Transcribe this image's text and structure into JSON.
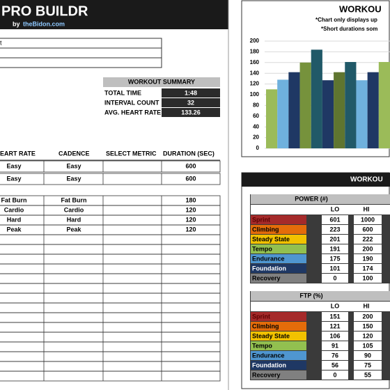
{
  "header": {
    "title": "PRO BUILDR",
    "by": "by",
    "site": "theBidon.com"
  },
  "inputs": {
    "label": "t"
  },
  "summary": {
    "title": "WORKOUT SUMMARY",
    "rows": [
      [
        "TOTAL TIME",
        "1:48"
      ],
      [
        "INTERVAL COUNT",
        32
      ],
      [
        "AVG. HEART RATE",
        133.26
      ]
    ]
  },
  "intervals": {
    "columns": [
      "EART RATE",
      "CADENCE",
      "SELECT METRIC",
      "DURATION (SEC)"
    ],
    "rows": [
      [
        "Easy",
        "Easy",
        600
      ],
      [
        "Easy",
        "Easy",
        600
      ],
      [
        "Fat Burn",
        "Fat Burn",
        180
      ],
      [
        "Cardio",
        "Cardio",
        120
      ],
      [
        "Hard",
        "Hard",
        120
      ],
      [
        "Peak",
        "Peak",
        120
      ]
    ]
  },
  "chart": {
    "type": "bar",
    "title": "WORKOU",
    "notes": [
      "*Chart only displays up",
      "*Short durations som"
    ],
    "ylim": [
      0,
      200
    ],
    "yticks": [
      0,
      20,
      40,
      60,
      80,
      100,
      120,
      140,
      160,
      180,
      200
    ],
    "grid": true,
    "values": [
      110,
      128,
      142,
      160,
      184,
      127,
      142,
      161,
      127,
      142,
      161
    ],
    "colors": [
      "#9bbb59",
      "#6fb1dd",
      "#1f3864",
      "#76923c",
      "#215968",
      "#1f3864",
      "#5f7530",
      "#215968",
      "#6fb1dd",
      "#1f3864",
      "#9bbb59"
    ]
  },
  "zones": {
    "title": "WORKOU",
    "lo": "LO",
    "hi": "HI",
    "names": [
      "Sprint",
      "Climbing",
      "Steady State",
      "Tempo",
      "Endurance",
      "Foundation",
      "Recovery"
    ],
    "colors": [
      "#a52a2a",
      "#e46c0a",
      "#f2c200",
      "#92c050",
      "#4f96d0",
      "#1f3864",
      "#808080"
    ],
    "power": {
      "title": "POWER (#)",
      "rows": [
        [
          601,
          1000
        ],
        [
          223,
          600
        ],
        [
          201,
          222
        ],
        [
          191,
          200
        ],
        [
          175,
          190
        ],
        [
          101,
          174
        ],
        [
          0,
          100
        ]
      ]
    },
    "ftp": {
      "title": "FTP (%)",
      "rows": [
        [
          151,
          200
        ],
        [
          121,
          150
        ],
        [
          106,
          120
        ],
        [
          91,
          105
        ],
        [
          76,
          90
        ],
        [
          56,
          75
        ],
        [
          0,
          55
        ]
      ]
    }
  }
}
